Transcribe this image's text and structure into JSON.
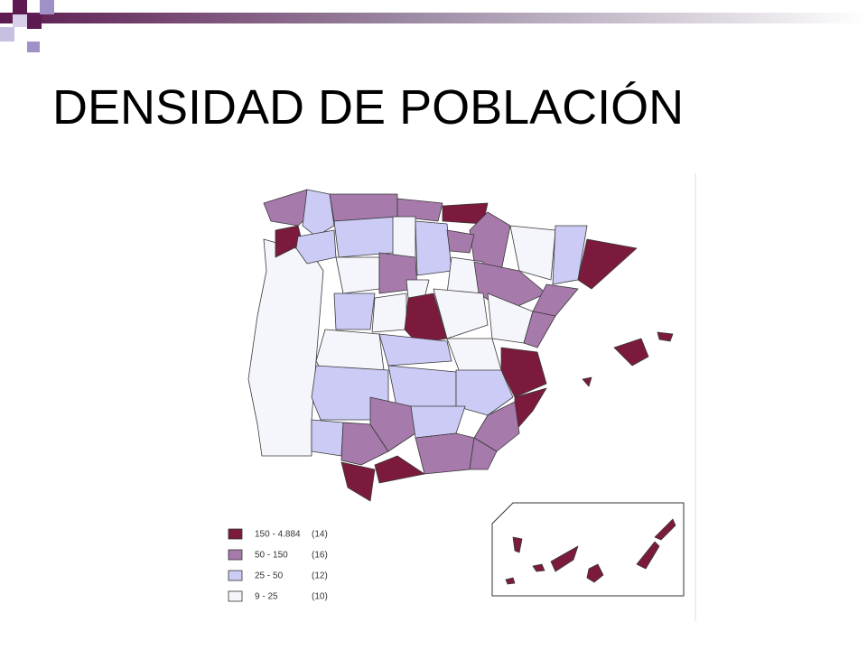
{
  "header": {
    "title": "DENSIDAD DE POBLACIÓN"
  },
  "legend": [
    {
      "range": "150 - 4.884",
      "count": "(14)",
      "color": "#7b1a3d"
    },
    {
      "range": "50 - 150",
      "count": "(16)",
      "color": "#a67aaa"
    },
    {
      "range": "25 - 50",
      "count": "(12)",
      "color": "#cbcbf5"
    },
    {
      "range": "9 - 25",
      "count": "(10)",
      "color": "#f5f5fc"
    }
  ]
}
